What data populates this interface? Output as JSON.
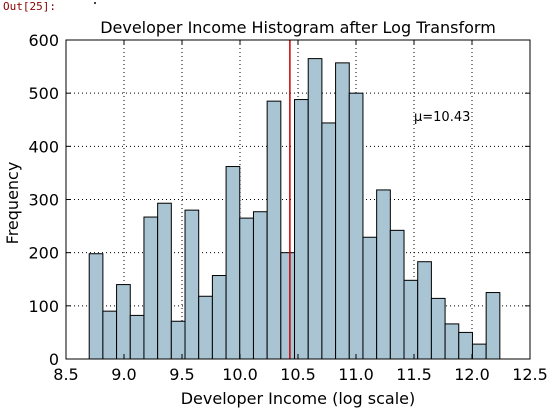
{
  "cell": {
    "out_prompt": "Out[25]:"
  },
  "chart_data": {
    "type": "bar",
    "title": "Developer Income Histogram after Log Transform",
    "xlabel": "Developer Income (log scale)",
    "ylabel": "Frequency",
    "xlim": [
      8.5,
      12.5
    ],
    "ylim": [
      0,
      600
    ],
    "x_ticks": [
      "8.5",
      "9.0",
      "9.5",
      "10.0",
      "10.5",
      "11.0",
      "11.5",
      "12.0",
      "12.5"
    ],
    "y_ticks": [
      "0",
      "100",
      "200",
      "300",
      "400",
      "500",
      "600"
    ],
    "grid": true,
    "bar_color": "#a9c4d2",
    "bar_edge_color": "#000000",
    "bin_edges": [
      8.7,
      8.818,
      8.936,
      9.054,
      9.172,
      9.29,
      9.408,
      9.526,
      9.644,
      9.762,
      9.88,
      9.998,
      10.116,
      10.234,
      10.352,
      10.47,
      10.588,
      10.706,
      10.824,
      10.942,
      11.06,
      11.178,
      11.296,
      11.414,
      11.532,
      11.65,
      11.768,
      11.886,
      12.004,
      12.122,
      12.24
    ],
    "values": [
      198,
      90,
      140,
      82,
      267,
      293,
      71,
      280,
      118,
      157,
      362,
      265,
      277,
      485,
      200,
      488,
      565,
      444,
      557,
      500,
      229,
      318,
      242,
      148,
      183,
      114,
      66,
      50,
      28,
      125
    ],
    "mean_line": {
      "value": 10.43,
      "color": "#cc0000"
    },
    "annotation": {
      "label": "μ=10.43",
      "x": 11.5,
      "y": 450
    }
  }
}
